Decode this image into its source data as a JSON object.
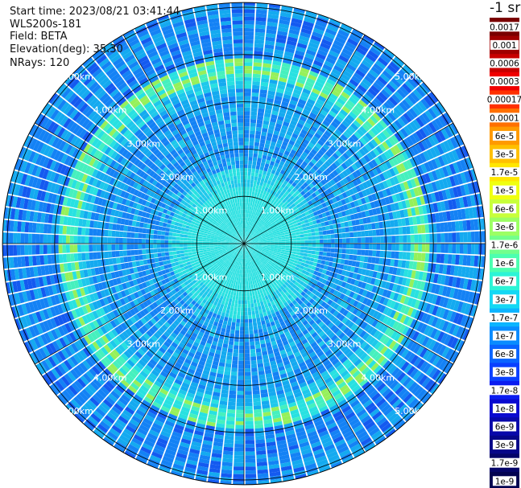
{
  "header": {
    "start_time": "Start time: 2023/08/21 03:41:44",
    "instrument": "WLS200s-181",
    "field": "Field: BETA",
    "elevation": "Elevation(deg): 35.30",
    "nrays": "NRays: 120"
  },
  "colorbar": {
    "unit_label": "-1 sr",
    "labels": [
      "0.0017",
      "0.001",
      "0.0006",
      "0.0003",
      "0.00017",
      "0.0001",
      "6e-5",
      "3e-5",
      "1.7e-5",
      "1e-5",
      "6e-6",
      "3e-6",
      "1.7e-6",
      "1e-6",
      "6e-7",
      "3e-7",
      "1.7e-7",
      "1e-7",
      "6e-8",
      "3e-8",
      "1.7e-8",
      "1e-8",
      "6e-9",
      "3e-9",
      "1.7e-9",
      "1e-9"
    ],
    "colors": [
      "#7a0000",
      "#a00000",
      "#c80000",
      "#f00000",
      "#ff3000",
      "#ff7000",
      "#ff9a00",
      "#ffc000",
      "#ffe600",
      "#f0ff10",
      "#c8ff3a",
      "#9cff64",
      "#72ff8c",
      "#4cffb0",
      "#2cf4d6",
      "#14d8f4",
      "#0cb4ff",
      "#0a8cff",
      "#0a64ff",
      "#0a40ff",
      "#0a1cf0",
      "#0a0ad0",
      "#0808aa",
      "#060688",
      "#040468",
      "#020250"
    ]
  },
  "chart_data": {
    "type": "heatmap",
    "projection": "polar (PPI scan)",
    "field": "BETA",
    "n_rays": 120,
    "range_labels": [
      "1.00km",
      "2.00km",
      "3.00km",
      "4.00km",
      "5.00km"
    ],
    "range_rings_km": [
      1,
      2,
      3,
      4,
      5
    ],
    "max_range_km": 5.1,
    "radial_lines_deg": [
      0,
      30,
      60,
      90,
      120,
      150,
      180,
      210,
      240,
      270,
      300,
      330
    ],
    "value_scale": "log",
    "value_range": [
      1e-09,
      0.0017
    ],
    "features": [
      {
        "description_range_km": [
          0,
          1.5
        ],
        "typical_value": "1.7e-7"
      },
      {
        "description_range_km": [
          1.5,
          3.4
        ],
        "typical_value": "6e-8"
      },
      {
        "description_range_km": [
          3.4,
          4.0
        ],
        "typical_value": "1e-6"
      },
      {
        "description_range_km": [
          4.0,
          5.1
        ],
        "typical_value": "3e-8"
      }
    ]
  }
}
